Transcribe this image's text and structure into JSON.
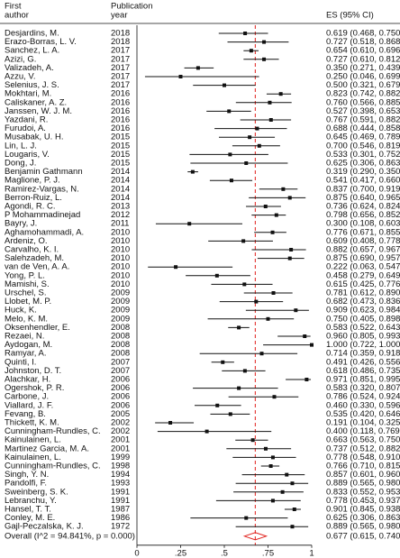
{
  "chart_data": {
    "type": "forest",
    "author_header": [
      "First",
      "author"
    ],
    "year_header": [
      "Publication",
      "year"
    ],
    "es_header": "ES (95% CI)",
    "authors": [
      "Desjardins, M.",
      "Erazo-Borras, L. V.",
      "Sanchez, L. A.",
      "Azizi, G.",
      "Valizadeh, A.",
      "Azzu, V.",
      "Selenius, J. S.",
      "Mokhtari, M.",
      "Caliskaner, A. Z.",
      "Janssen, W. J. M.",
      "Yazdani, R.",
      "Furudoi, A.",
      "Musabak, U. H.",
      "Lin, L. J.",
      "Lougaris, V.",
      "Dong, J.",
      "Benjamin Gathmann",
      "Maglione, P. J.",
      "Ramirez-Vargas, N.",
      "Berron-Ruiz, L.",
      "Agondi, R. C.",
      "P Mohammadinejad",
      "Bayry, J.",
      "Aghamohammadi, A.",
      "Ardeniz, O.",
      "Carvalho, K. I.",
      "Salehzadeh, M.",
      "van de Ven, A. A.",
      "Yong, P. L.",
      "Mamishi, S.",
      "Urschel, S.",
      "Llobet, M. P.",
      "Huck, K.",
      "Melo, K. M.",
      "Oksenhendler, E.",
      "Rezaei, N.",
      "Aydogan, M.",
      "Ramyar, A.",
      "Quinti, I.",
      "Johnston, D. T.",
      "Alachkar, H.",
      "Ogershok, P. R.",
      "Carbone, J.",
      "Viallard, J. F.",
      "Fevang, B.",
      "Thickett, K. M.",
      "Cunningham-Rundles, C.",
      "Kainulainen, L.",
      "Martinez Garcia, M. A.",
      "Kainulainen, L.",
      "Cunningham-Rundles, C.",
      "Singh, Y. N.",
      "Pandolfi, F.",
      "Sweinberg, S. K.",
      "Lebranchu, Y.",
      "Hansel, T. T.",
      "Conley, M. E.",
      "Gajl-Peczalska, K. J."
    ],
    "years": [
      "2018",
      "2018",
      "2017",
      "2017",
      "2017",
      "2017",
      "2017",
      "2016",
      "2016",
      "2016",
      "2016",
      "2016",
      "2015",
      "2015",
      "2015",
      "2015",
      "2014",
      "2014",
      "2014",
      "2014",
      "2013",
      "2012",
      "2011",
      "2010",
      "2010",
      "2010",
      "2010",
      "2010",
      "2010",
      "2010",
      "2009",
      "2009",
      "2009",
      "2009",
      "2008",
      "2008",
      "2008",
      "2008",
      "2007",
      "2007",
      "2006",
      "2006",
      "2006",
      "2006",
      "2005",
      "2002",
      "2002",
      "2001",
      "2001",
      "1999",
      "1998",
      "1994",
      "1993",
      "1991",
      "1991",
      "1987",
      "1986",
      "1972"
    ],
    "values": [
      0.619,
      0.727,
      0.654,
      0.727,
      0.35,
      0.25,
      0.5,
      0.823,
      0.76,
      0.527,
      0.767,
      0.688,
      0.645,
      0.7,
      0.533,
      0.625,
      0.319,
      0.541,
      0.837,
      0.875,
      0.736,
      0.798,
      0.3,
      0.776,
      0.609,
      0.882,
      0.875,
      0.222,
      0.458,
      0.615,
      0.781,
      0.682,
      0.909,
      0.75,
      0.583,
      0.96,
      1.0,
      0.714,
      0.491,
      0.618,
      0.971,
      0.583,
      0.786,
      0.46,
      0.535,
      0.191,
      0.4,
      0.663,
      0.737,
      0.778,
      0.766,
      0.857,
      0.889,
      0.833,
      0.778,
      0.901,
      0.625,
      0.889
    ],
    "lower": [
      0.468,
      0.518,
      0.61,
      0.61,
      0.271,
      0.046,
      0.321,
      0.742,
      0.566,
      0.398,
      0.591,
      0.444,
      0.469,
      0.546,
      0.301,
      0.306,
      0.29,
      0.417,
      0.7,
      0.64,
      0.624,
      0.656,
      0.108,
      0.671,
      0.408,
      0.657,
      0.69,
      0.063,
      0.279,
      0.425,
      0.612,
      0.473,
      0.623,
      0.405,
      0.522,
      0.805,
      0.722,
      0.359,
      0.426,
      0.486,
      0.851,
      0.32,
      0.524,
      0.33,
      0.42,
      0.104,
      0.118,
      0.563,
      0.512,
      0.548,
      0.71,
      0.601,
      0.565,
      0.552,
      0.453,
      0.845,
      0.306,
      0.565
    ],
    "upper": [
      0.75,
      0.868,
      0.696,
      0.812,
      0.439,
      0.699,
      0.679,
      0.882,
      0.885,
      0.653,
      0.882,
      0.858,
      0.789,
      0.819,
      0.752,
      0.863,
      0.35,
      0.66,
      0.919,
      0.965,
      0.824,
      0.852,
      0.603,
      0.855,
      0.778,
      0.967,
      0.957,
      0.547,
      0.649,
      0.776,
      0.89,
      0.836,
      0.984,
      0.898,
      0.643,
      0.993,
      1.0,
      0.918,
      0.556,
      0.735,
      0.995,
      0.807,
      0.924,
      0.596,
      0.646,
      0.325,
      0.769,
      0.75,
      0.882,
      0.91,
      0.815,
      0.96,
      0.98,
      0.953,
      0.937,
      0.938,
      0.863,
      0.98
    ],
    "value_labels": [
      "0.619 (0.468, 0.750)",
      "0.727 (0.518, 0.868)",
      "0.654 (0.610, 0.696)",
      "0.727 (0.610, 0.812)",
      "0.350 (0.271, 0.439)",
      "0.250 (0.046, 0.699)",
      "0.500 (0.321, 0.679)",
      "0.823 (0.742, 0.882)",
      "0.760 (0.566, 0.885)",
      "0.527 (0.398, 0.653)",
      "0.767 (0.591, 0.882)",
      "0.688 (0.444, 0.858)",
      "0.645 (0.469, 0.789)",
      "0.700 (0.546, 0.819)",
      "0.533 (0.301, 0.752)",
      "0.625 (0.306, 0.863)",
      "0.319 (0.290, 0.350)",
      "0.541 (0.417, 0.660)",
      "0.837 (0.700, 0.919)",
      "0.875 (0.640, 0.965)",
      "0.736 (0.624, 0.824)",
      "0.798 (0.656, 0.852)",
      "0.300 (0.108, 0.603)",
      "0.776 (0.671, 0.855)",
      "0.609 (0.408, 0.778)",
      "0.882 (0.657, 0.967)",
      "0.875 (0.690, 0.957)",
      "0.222 (0.063, 0.547)",
      "0.458 (0.279, 0.649)",
      "0.615 (0.425, 0.776)",
      "0.781 (0.612, 0.890)",
      "0.682 (0.473, 0.836)",
      "0.909 (0.623, 0.984)",
      "0.750 (0.405, 0.898)",
      "0.583 (0.522, 0.643)",
      "0.960 (0.805, 0.993)",
      "1.000 (0.722, 1.000)",
      "0.714 (0.359, 0.918)",
      "0.491 (0.426, 0.556)",
      "0.618 (0.486, 0.735)",
      "0.971 (0.851, 0.995)",
      "0.583 (0.320, 0.807)",
      "0.786 (0.524, 0.924)",
      "0.460 (0.330, 0.596)",
      "0.535 (0.420, 0.646)",
      "0.191 (0.104, 0.325)",
      "0.400 (0.118, 0.769)",
      "0.663 (0.563, 0.750)",
      "0.737 (0.512, 0.882)",
      "0.778 (0.548, 0.910)",
      "0.766 (0.710, 0.815)",
      "0.857 (0.601, 0.960)",
      "0.889 (0.565, 0.980)",
      "0.833 (0.552, 0.953)",
      "0.778 (0.453, 0.937)",
      "0.901 (0.845, 0.938)",
      "0.625 (0.306, 0.863)",
      "0.889 (0.565, 0.980)"
    ],
    "overall": {
      "label": "Overall (I^2 = 94.841%, p = 0.000)",
      "value": 0.677,
      "lower": 0.615,
      "upper": 0.74,
      "value_label": "0.677 (0.615, 0.740)",
      "color": "#e0201b"
    },
    "color": "#111111",
    "xlim": [
      0,
      1
    ],
    "xticks": [
      0,
      {
        "value": 0.25,
        "label": ".25"
      },
      {
        "value": 0.5,
        "label": ".5"
      },
      {
        "value": 0.75,
        "label": ".75"
      },
      1
    ]
  }
}
